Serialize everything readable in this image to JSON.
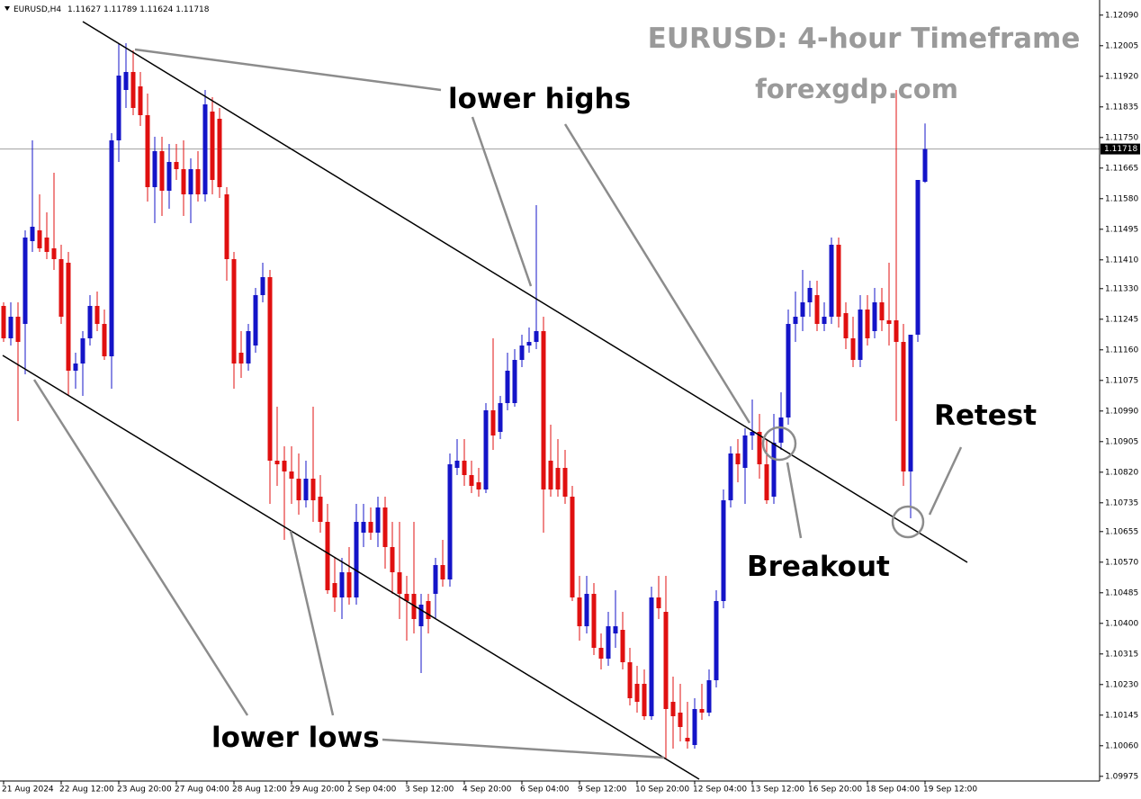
{
  "chart_data": {
    "type": "candlestick",
    "title": "EURUSD: 4-hour Timeframe",
    "subtitle": "forexgdp.com",
    "symbol": "EURUSD,H4",
    "header_ohlc": [
      1.11627,
      1.11789,
      1.11624,
      1.11718
    ],
    "current_price": 1.11718,
    "annotations": [
      "lower highs",
      "lower lows",
      "Breakout",
      "Retest"
    ],
    "up_color": "#1414c8",
    "down_color": "#e01010",
    "ylim": [
      1.09962,
      1.12132
    ],
    "yticks": [
      {
        "value": 1.1209,
        "label": "1.12090"
      },
      1.12005,
      {
        "value": 1.1192,
        "label": "1.11920"
      },
      1.11835,
      {
        "value": 1.1175,
        "label": "1.11750"
      },
      1.11665,
      {
        "value": 1.1158,
        "label": "1.11580"
      },
      1.11495,
      {
        "value": 1.1141,
        "label": "1.11410"
      },
      {
        "value": 1.1133,
        "label": "1.11330"
      },
      1.11245,
      {
        "value": 1.1116,
        "label": "1.11160"
      },
      1.11075,
      {
        "value": 1.1099,
        "label": "1.10990"
      },
      1.10905,
      {
        "value": 1.1082,
        "label": "1.10820"
      },
      1.10735,
      1.10655,
      {
        "value": 1.1057,
        "label": "1.10570"
      },
      1.10485,
      {
        "value": 1.104,
        "label": "1.10400"
      },
      1.10315,
      {
        "value": 1.1023,
        "label": "1.10230"
      },
      1.10145,
      {
        "value": 1.1006,
        "label": "1.10060"
      },
      1.09975
    ],
    "categories": [
      "21 Aug 2024",
      null,
      null,
      null,
      null,
      null,
      null,
      null,
      "22 Aug 12:00",
      null,
      null,
      null,
      null,
      null,
      null,
      null,
      "23 Aug 20:00",
      null,
      null,
      null,
      null,
      null,
      null,
      null,
      "27 Aug 04:00",
      null,
      null,
      null,
      null,
      null,
      null,
      null,
      "28 Aug 12:00",
      null,
      null,
      null,
      null,
      null,
      null,
      null,
      "29 Aug 20:00",
      null,
      null,
      null,
      null,
      null,
      null,
      null,
      "2 Sep 04:00",
      null,
      null,
      null,
      null,
      null,
      null,
      null,
      "3 Sep 12:00",
      null,
      null,
      null,
      null,
      null,
      null,
      null,
      "4 Sep 20:00",
      null,
      null,
      null,
      null,
      null,
      null,
      null,
      "6 Sep 04:00",
      null,
      null,
      null,
      null,
      null,
      null,
      null,
      "9 Sep 12:00",
      null,
      null,
      null,
      null,
      null,
      null,
      null,
      "10 Sep 20:00",
      null,
      null,
      null,
      null,
      null,
      null,
      null,
      "12 Sep 04:00",
      null,
      null,
      null,
      null,
      null,
      null,
      null,
      "13 Sep 12:00",
      null,
      null,
      null,
      null,
      null,
      null,
      null,
      "16 Sep 20:00",
      null,
      null,
      null,
      null,
      null,
      null,
      null,
      "18 Sep 04:00",
      null,
      null,
      null,
      null,
      null,
      null,
      null,
      "19 Sep 12:00"
    ],
    "ohlc": [
      [
        1.11282,
        1.11292,
        1.11182,
        1.11192
      ],
      [
        1.11192,
        1.11292,
        1.11172,
        1.11252
      ],
      [
        1.11252,
        1.11292,
        1.10962,
        1.11182
      ],
      [
        1.11232,
        1.11492,
        1.11092,
        1.11472
      ],
      [
        1.11462,
        1.11742,
        1.11432,
        1.11502
      ],
      [
        1.11492,
        1.11592,
        1.11432,
        1.11442
      ],
      [
        1.11472,
        1.11542,
        1.11412,
        1.11432
      ],
      [
        1.11442,
        1.11652,
        1.11382,
        1.11412
      ],
      [
        1.11412,
        1.11452,
        1.11232,
        1.11252
      ],
      [
        1.11402,
        1.11432,
        1.11032,
        1.11102
      ],
      [
        1.11102,
        1.11152,
        1.11052,
        1.11122
      ],
      [
        1.11122,
        1.11212,
        1.11032,
        1.11192
      ],
      [
        1.11192,
        1.11312,
        1.11172,
        1.11282
      ],
      [
        1.11282,
        1.11322,
        1.11212,
        1.11232
      ],
      [
        1.11232,
        1.11272,
        1.11132,
        1.11142
      ],
      [
        1.11142,
        1.11762,
        1.11052,
        1.11742
      ],
      [
        1.11742,
        1.12012,
        1.11682,
        1.11922
      ],
      [
        1.11882,
        1.12012,
        1.11832,
        1.11932
      ],
      [
        1.11932,
        1.11992,
        1.11812,
        1.11832
      ],
      [
        1.11892,
        1.11932,
        1.11782,
        1.11812
      ],
      [
        1.11812,
        1.11872,
        1.11572,
        1.11612
      ],
      [
        1.11612,
        1.11752,
        1.11512,
        1.11712
      ],
      [
        1.11712,
        1.11752,
        1.11532,
        1.11602
      ],
      [
        1.11602,
        1.11732,
        1.11552,
        1.11682
      ],
      [
        1.11682,
        1.11732,
        1.11632,
        1.11662
      ],
      [
        1.11662,
        1.11742,
        1.11532,
        1.11592
      ],
      [
        1.11592,
        1.11692,
        1.11512,
        1.11662
      ],
      [
        1.11662,
        1.11712,
        1.11572,
        1.11592
      ],
      [
        1.11592,
        1.11882,
        1.11572,
        1.11842
      ],
      [
        1.11822,
        1.11862,
        1.11592,
        1.11632
      ],
      [
        1.11802,
        1.11832,
        1.11582,
        1.11612
      ],
      [
        1.11592,
        1.11612,
        1.11352,
        1.11412
      ],
      [
        1.11412,
        1.11432,
        1.11052,
        1.11122
      ],
      [
        1.11152,
        1.11212,
        1.11082,
        1.11122
      ],
      [
        1.11122,
        1.11232,
        1.11102,
        1.11212
      ],
      [
        1.11172,
        1.11332,
        1.11152,
        1.11312
      ],
      [
        1.11312,
        1.11402,
        1.11292,
        1.11362
      ],
      [
        1.11362,
        1.11382,
        1.10732,
        1.10852
      ],
      [
        1.10852,
        1.11002,
        1.10782,
        1.10842
      ],
      [
        1.10852,
        1.10892,
        1.10632,
        1.10822
      ],
      [
        1.10822,
        1.10892,
        1.10732,
        1.10802
      ],
      [
        1.10802,
        1.10872,
        1.10702,
        1.10742
      ],
      [
        1.10742,
        1.10852,
        1.10722,
        1.10802
      ],
      [
        1.10802,
        1.11002,
        1.10682,
        1.10742
      ],
      [
        1.10752,
        1.10812,
        1.10652,
        1.10682
      ],
      [
        1.10682,
        1.10732,
        1.10482,
        1.10492
      ],
      [
        1.10512,
        1.10582,
        1.10432,
        1.10472
      ],
      [
        1.10472,
        1.10582,
        1.10412,
        1.10542
      ],
      [
        1.10542,
        1.10612,
        1.10452,
        1.10472
      ],
      [
        1.10472,
        1.10732,
        1.10452,
        1.10682
      ],
      [
        1.10652,
        1.10732,
        1.10612,
        1.10682
      ],
      [
        1.10682,
        1.10722,
        1.10632,
        1.10652
      ],
      [
        1.10652,
        1.10752,
        1.10612,
        1.10722
      ],
      [
        1.10722,
        1.10752,
        1.10552,
        1.10612
      ],
      [
        1.10612,
        1.10682,
        1.10482,
        1.10542
      ],
      [
        1.10542,
        1.10682,
        1.10412,
        1.10482
      ],
      [
        1.10482,
        1.10532,
        1.10352,
        1.10462
      ],
      [
        1.10482,
        1.10682,
        1.10372,
        1.10412
      ],
      [
        1.10392,
        1.10482,
        1.10262,
        1.10452
      ],
      [
        1.10462,
        1.10482,
        1.10372,
        1.10412
      ],
      [
        1.10482,
        1.10582,
        1.10412,
        1.10562
      ],
      [
        1.10562,
        1.10632,
        1.10502,
        1.10522
      ],
      [
        1.10522,
        1.10872,
        1.10502,
        1.10842
      ],
      [
        1.10832,
        1.10912,
        1.10812,
        1.10852
      ],
      [
        1.10852,
        1.10912,
        1.10782,
        1.10812
      ],
      [
        1.10812,
        1.10852,
        1.10762,
        1.10782
      ],
      [
        1.10792,
        1.10832,
        1.10752,
        1.10772
      ],
      [
        1.10772,
        1.11012,
        1.10762,
        1.10992
      ],
      [
        1.10992,
        1.11192,
        1.10882,
        1.10922
      ],
      [
        1.10932,
        1.11032,
        1.10912,
        1.11012
      ],
      [
        1.11012,
        1.11152,
        1.10992,
        1.11102
      ],
      [
        1.11012,
        1.11162,
        1.11002,
        1.11132
      ],
      [
        1.11132,
        1.11202,
        1.11112,
        1.11172
      ],
      [
        1.11172,
        1.11222,
        1.11152,
        1.11182
      ],
      [
        1.11182,
        1.11562,
        1.11162,
        1.11212
      ],
      [
        1.11212,
        1.11252,
        1.10652,
        1.10772
      ],
      [
        1.10852,
        1.10952,
        1.10752,
        1.10772
      ],
      [
        1.10832,
        1.10912,
        1.10752,
        1.10772
      ],
      [
        1.10832,
        1.10882,
        1.10732,
        1.10752
      ],
      [
        1.10752,
        1.10782,
        1.10462,
        1.10472
      ],
      [
        1.10472,
        1.10532,
        1.10352,
        1.10392
      ],
      [
        1.10392,
        1.10532,
        1.10372,
        1.10482
      ],
      [
        1.10482,
        1.10512,
        1.10312,
        1.10332
      ],
      [
        1.10332,
        1.10372,
        1.10272,
        1.10302
      ],
      [
        1.10302,
        1.10432,
        1.10282,
        1.10392
      ],
      [
        1.10372,
        1.10492,
        1.10332,
        1.10392
      ],
      [
        1.10382,
        1.10432,
        1.10272,
        1.10292
      ],
      [
        1.10292,
        1.10332,
        1.10172,
        1.10192
      ],
      [
        1.10232,
        1.10282,
        1.10152,
        1.10182
      ],
      [
        1.10232,
        1.10272,
        1.10132,
        1.10142
      ],
      [
        1.10142,
        1.10502,
        1.10132,
        1.10472
      ],
      [
        1.10472,
        1.10532,
        1.10412,
        1.10442
      ],
      [
        1.10432,
        1.10532,
        1.10022,
        1.10162
      ],
      [
        1.10182,
        1.10252,
        1.10052,
        1.10142
      ],
      [
        1.10152,
        1.10232,
        1.10072,
        1.10112
      ],
      [
        1.10082,
        1.10182,
        1.10052,
        1.10072
      ],
      [
        1.10062,
        1.10192,
        1.10052,
        1.10162
      ],
      [
        1.10162,
        1.10232,
        1.10132,
        1.10152
      ],
      [
        1.10152,
        1.10272,
        1.10142,
        1.10242
      ],
      [
        1.10242,
        1.10492,
        1.10222,
        1.10462
      ],
      [
        1.10462,
        1.10772,
        1.10442,
        1.10742
      ],
      [
        1.10742,
        1.10892,
        1.10722,
        1.10872
      ],
      [
        1.10872,
        1.10912,
        1.10792,
        1.10842
      ],
      [
        1.10832,
        1.10942,
        1.10732,
        1.10922
      ],
      [
        1.10922,
        1.11022,
        1.10882,
        1.10932
      ],
      [
        1.10932,
        1.10982,
        1.10802,
        1.10842
      ],
      [
        1.10842,
        1.10912,
        1.10732,
        1.10742
      ],
      [
        1.10752,
        1.10982,
        1.10732,
        1.10902
      ],
      [
        1.10902,
        1.11042,
        1.10882,
        1.10972
      ],
      [
        1.10972,
        1.11272,
        1.10952,
        1.11232
      ],
      [
        1.11232,
        1.11322,
        1.11182,
        1.11252
      ],
      [
        1.11252,
        1.11382,
        1.11212,
        1.11292
      ],
      [
        1.11292,
        1.11352,
        1.11252,
        1.11332
      ],
      [
        1.11312,
        1.11352,
        1.11212,
        1.11232
      ],
      [
        1.11232,
        1.11292,
        1.11212,
        1.11252
      ],
      [
        1.11252,
        1.11472,
        1.11232,
        1.11452
      ],
      [
        1.11452,
        1.11472,
        1.11222,
        1.11252
      ],
      [
        1.11262,
        1.11292,
        1.11162,
        1.11192
      ],
      [
        1.11192,
        1.11252,
        1.11112,
        1.11132
      ],
      [
        1.11132,
        1.11312,
        1.11112,
        1.11272
      ],
      [
        1.11272,
        1.11312,
        1.11172,
        1.11192
      ],
      [
        1.11212,
        1.11332,
        1.11192,
        1.11292
      ],
      [
        1.11292,
        1.11332,
        1.11212,
        1.11242
      ],
      [
        1.11242,
        1.11402,
        1.11172,
        1.11232
      ],
      [
        1.11242,
        1.11882,
        1.10962,
        1.11182
      ],
      [
        1.11182,
        1.11232,
        1.10782,
        1.10822
      ],
      [
        1.10822,
        1.11202,
        1.10692,
        1.11202
      ],
      [
        1.11202,
        1.11632,
        1.11182,
        1.11632
      ],
      [
        1.11627,
        1.11789,
        1.11624,
        1.11718
      ]
    ]
  }
}
